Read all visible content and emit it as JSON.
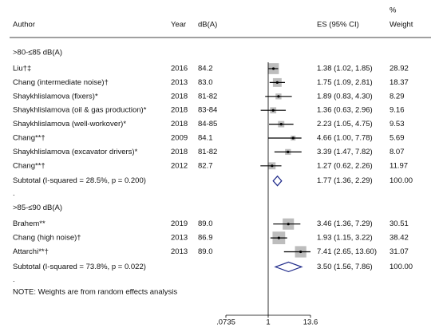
{
  "chart_data": {
    "type": "forest",
    "headers": {
      "author": "Author",
      "year": "Year",
      "db": "dB(A)",
      "es": "ES (95% CI)",
      "weight_top": "%",
      "weight": "Weight"
    },
    "groups": [
      {
        "label": ">80-≤85 dB(A)",
        "studies": [
          {
            "author": "Liu†‡",
            "year": 2016,
            "db": "84.2",
            "es": 1.38,
            "lo": 1.02,
            "hi": 1.85,
            "es_label": "1.38 (1.02, 1.85)",
            "weight": 28.92
          },
          {
            "author": "Chang (intermediate noise)†",
            "year": 2013,
            "db": "83.0",
            "es": 1.75,
            "lo": 1.09,
            "hi": 2.81,
            "es_label": "1.75 (1.09, 2.81)",
            "weight": 18.37
          },
          {
            "author": "Shaykhlislamova (fixers)*",
            "year": 2018,
            "db": "81-82",
            "es": 1.89,
            "lo": 0.83,
            "hi": 4.3,
            "es_label": "1.89 (0.83, 4.30)",
            "weight": 8.29
          },
          {
            "author": "Shaykhlislamova (oil & gas production)*",
            "year": 2018,
            "db": "83-84",
            "es": 1.36,
            "lo": 0.63,
            "hi": 2.96,
            "es_label": "1.36 (0.63, 2.96)",
            "weight": 9.16
          },
          {
            "author": "Shaykhlislamova (well-workover)*",
            "year": 2018,
            "db": "84-85",
            "es": 2.23,
            "lo": 1.05,
            "hi": 4.75,
            "es_label": "2.23 (1.05, 4.75)",
            "weight": 9.53
          },
          {
            "author": "Chang**†",
            "year": 2009,
            "db": "84.1",
            "es": 4.66,
            "lo": 1.0,
            "hi": 7.78,
            "es_label": "4.66 (1.00, 7.78)",
            "weight": 5.69
          },
          {
            "author": "Shaykhlislamova (excavator drivers)*",
            "year": 2018,
            "db": "81-82",
            "es": 3.39,
            "lo": 1.47,
            "hi": 7.82,
            "es_label": "3.39 (1.47, 7.82)",
            "weight": 8.07
          },
          {
            "author": "Chang**†",
            "year": 2012,
            "db": "82.7",
            "es": 1.27,
            "lo": 0.62,
            "hi": 2.26,
            "es_label": "1.27 (0.62, 2.26)",
            "weight": 11.97
          }
        ],
        "subtotal": {
          "label": "Subtotal  (I-squared = 28.5%, p = 0.200)",
          "es": 1.77,
          "lo": 1.36,
          "hi": 2.29,
          "es_label": "1.77 (1.36, 2.29)",
          "weight": "100.00"
        },
        "spacer": "."
      },
      {
        "label": ">85-≤90 dB(A)",
        "studies": [
          {
            "author": "Brahem**",
            "year": 2019,
            "db": "89.0",
            "es": 3.46,
            "lo": 1.36,
            "hi": 7.29,
            "es_label": "3.46 (1.36, 7.29)",
            "weight": 30.51
          },
          {
            "author": "Chang (high noise)†",
            "year": 2013,
            "db": "86.9",
            "es": 1.93,
            "lo": 1.15,
            "hi": 3.22,
            "es_label": "1.93 (1.15, 3.22)",
            "weight": 38.42
          },
          {
            "author": "Attarchi**†",
            "year": 2013,
            "db": "89.0",
            "es": 7.41,
            "lo": 2.65,
            "hi": 13.6,
            "es_label": "7.41 (2.65, 13.60)",
            "weight": 31.07
          }
        ],
        "subtotal": {
          "label": "Subtotal  (I-squared = 73.8%, p = 0.022)",
          "es": 3.5,
          "lo": 1.56,
          "hi": 7.86,
          "es_label": "3.50 (1.56, 7.86)",
          "weight": "100.00"
        },
        "spacer": "."
      }
    ],
    "note": "NOTE: Weights are from random effects analysis",
    "log_scale": true,
    "xlim": [
      0.0735,
      13.6
    ],
    "xticks": [
      {
        "value": 0.0735,
        "label": ".0735"
      },
      1,
      13.6
    ],
    "box_color": "#bdbdbd",
    "diamond_color": "#1f2a8a"
  }
}
